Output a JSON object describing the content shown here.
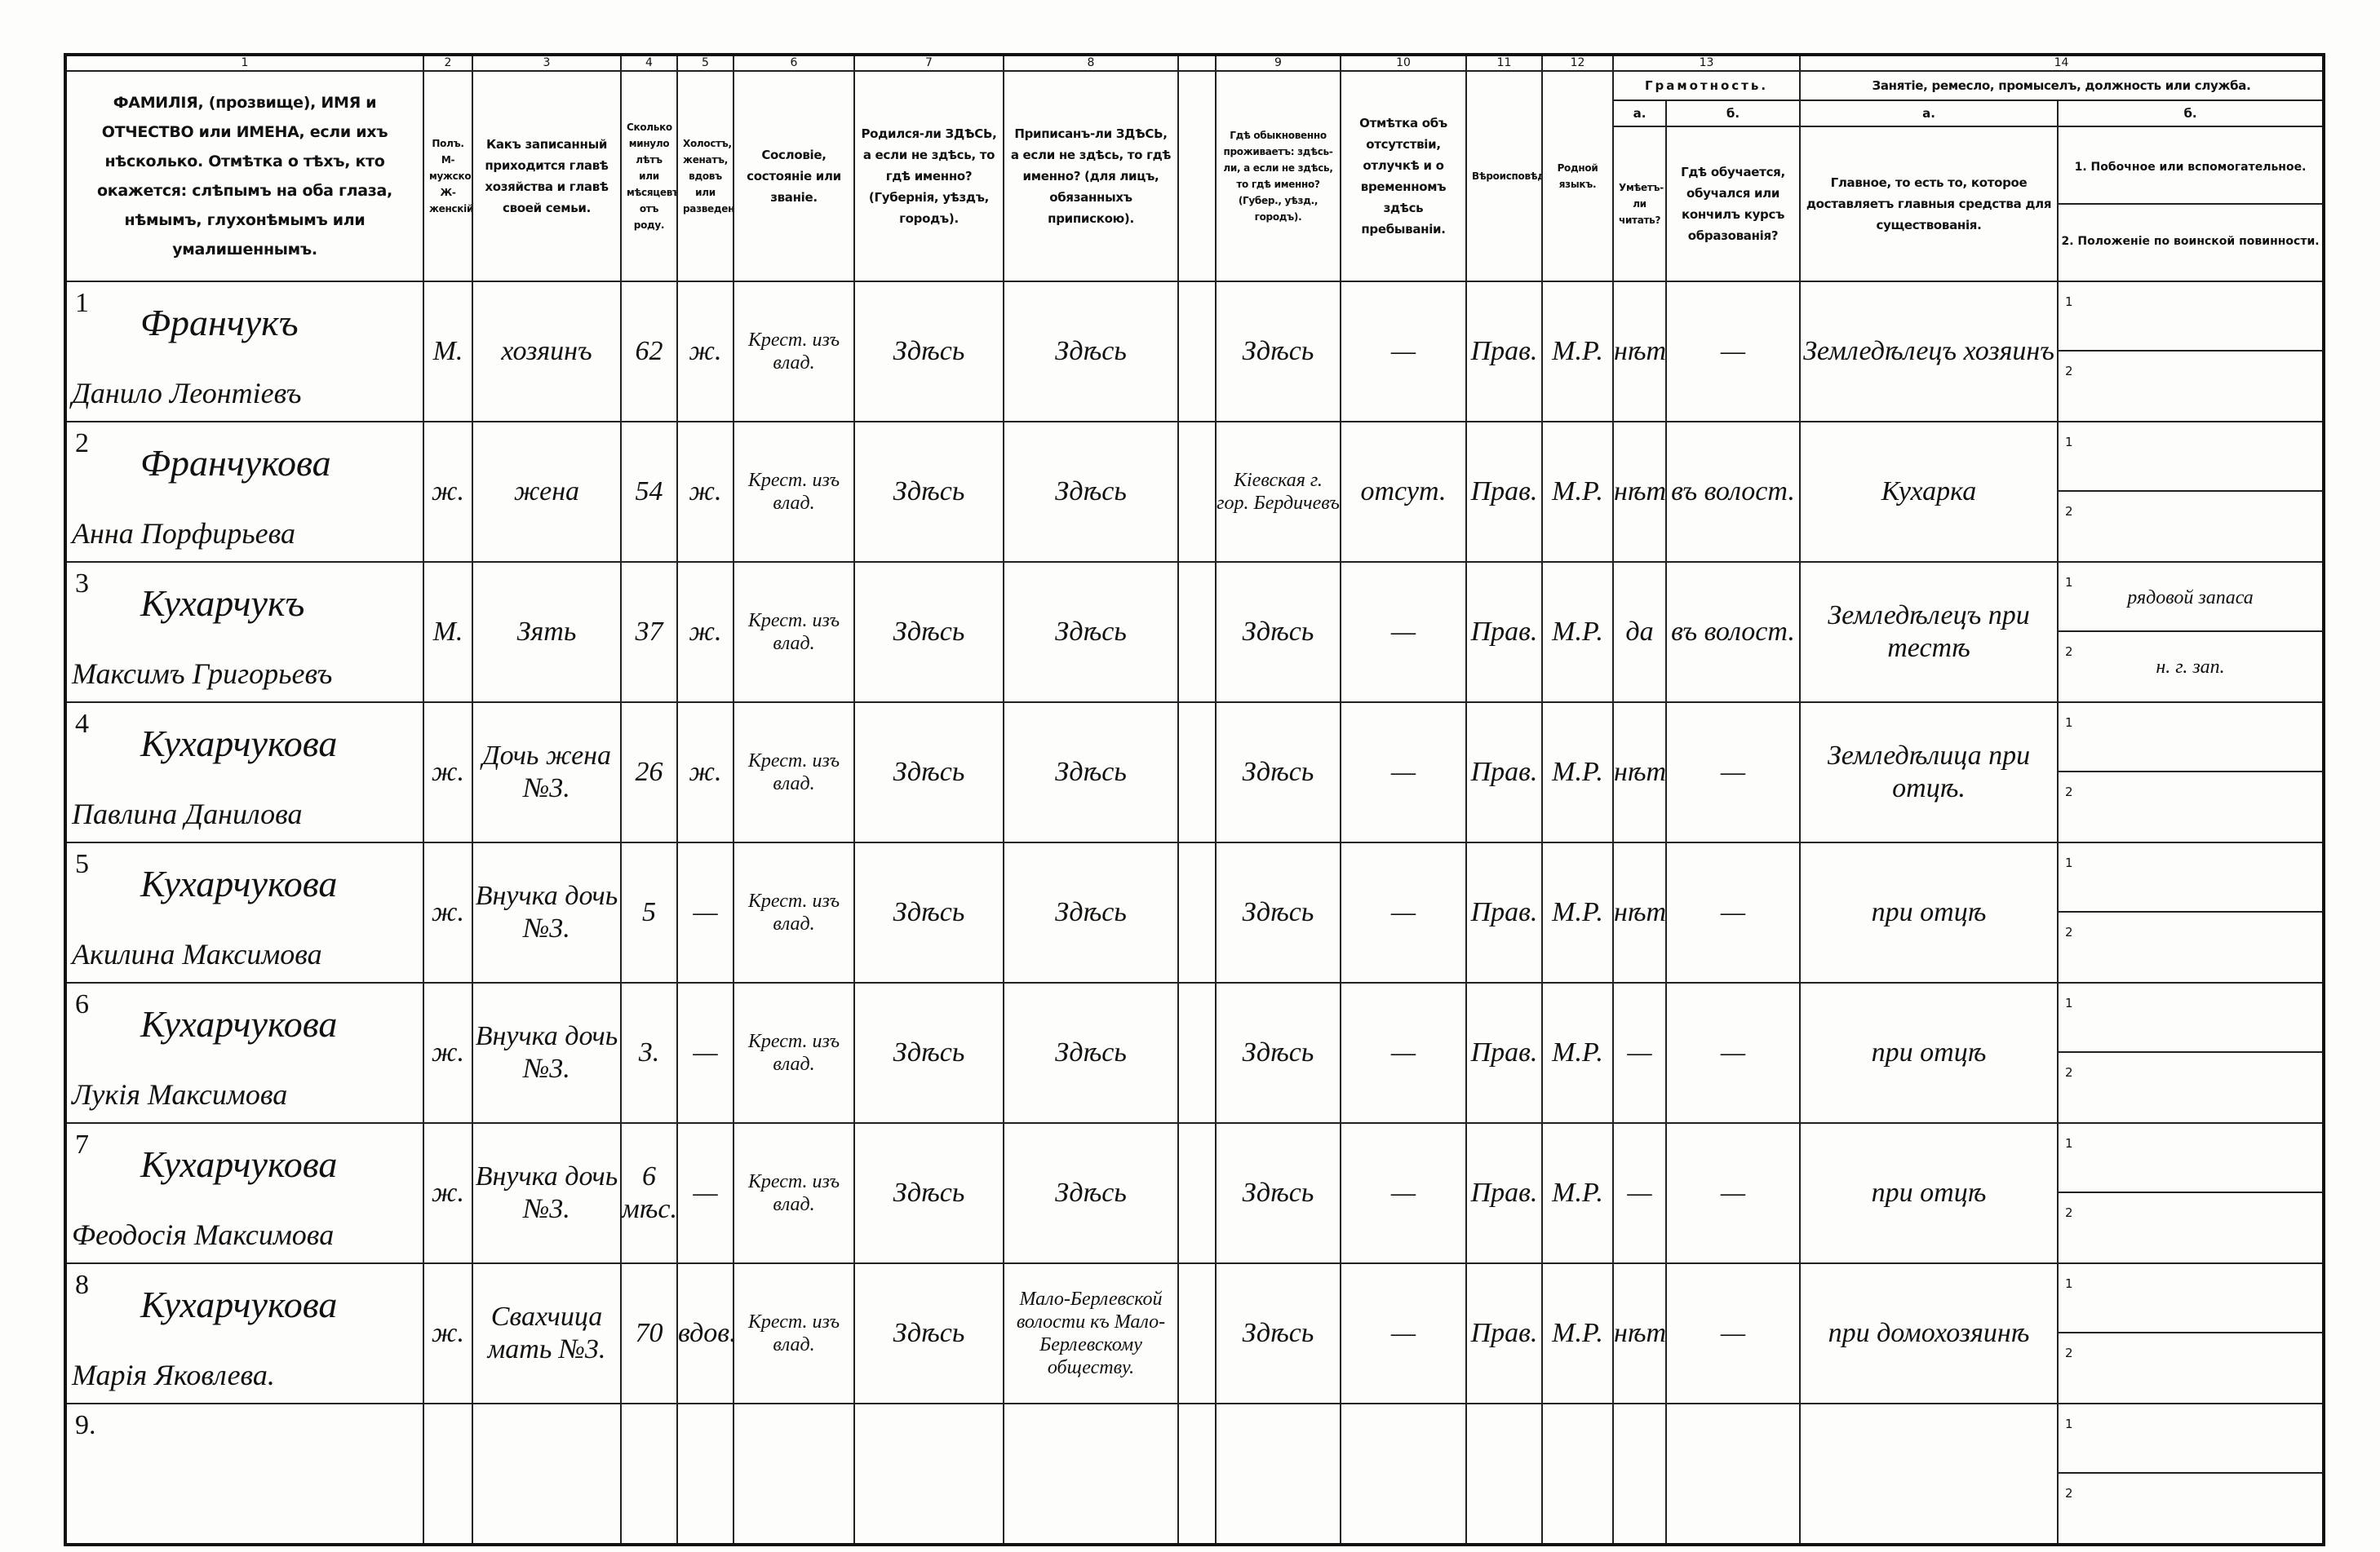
{
  "header": {
    "column_numbers": [
      "1",
      "2",
      "3",
      "4",
      "5",
      "6",
      "7",
      "8",
      "9",
      "10",
      "11",
      "12",
      "13",
      "14"
    ],
    "titles": [
      "ФАМИЛІЯ, (прозвище), ИМЯ и ОТЧЕСТВО или ИМЕНА, если ихъ нѣсколько. Отмѣтка о тѣхъ, кто окажется: слѣпымъ на оба глаза, нѣмымъ, глухонѣмымъ или умалишеннымъ.",
      "Полъ. М-мужской. Ж-женскій.",
      "Какъ записанный приходится главѣ хозяйства и главѣ своей семьи.",
      "Сколько минуло лѣтъ или мѣсяцевъ отъ роду.",
      "Холостъ, женатъ, вдовъ или разведенъ.",
      "Сословіе, состояніе или званіе.",
      "Родился-ли ЗДѢСЬ, а если не здѣсь, то гдѣ именно? (Губернія, уѣздъ, городъ).",
      "Приписанъ-ли ЗДѢСЬ, а если не здѣсь, то гдѣ именно? (для лицъ, обязанныхъ припискою).",
      "Гдѣ обыкновенно проживаетъ: здѣсь-ли, а если не здѣсь, то гдѣ именно? (Губер., уѣзд., городъ).",
      "Отмѣтка объ отсутствіи, отлучкѣ и о временномъ здѣсь пребываніи.",
      "Вѣроисповѣданіе.",
      "Родной языкъ."
    ],
    "literacy": {
      "title": "Грамотность.",
      "a_letter": "а.",
      "a_text": "Умѣетъ-ли читать?",
      "b_letter": "б.",
      "b_text": "Гдѣ обучается, обучался или кончилъ курсъ образованія?"
    },
    "occupation": {
      "title": "Занятіе, ремесло, промыселъ, должность или служба.",
      "a_letter": "а.",
      "a_text": "Главное, то есть то, которое доставляетъ главныя средства для существованія.",
      "b_letter": "б.",
      "b_text_1": "1. Побочное или вспомогательное.",
      "b_text_2": "2. Положеніе по воинской повинности."
    }
  },
  "rows": [
    {
      "number": "1",
      "surname": "Франчукъ",
      "name": "Данило Леонтіевъ",
      "sex": "М.",
      "relation": "хозяинъ",
      "age": "62",
      "marital": "ж.",
      "estate": "Крест. изъ влад.",
      "born": "Здѣсь",
      "registered": "Здѣсь",
      "residence": "Здѣсь",
      "absence": "—",
      "religion": "Прав.",
      "language": "М.Р.",
      "literate": "нѣтъ",
      "education": "—",
      "occupation": "Земледѣлецъ хозяинъ",
      "sub_labels": [
        "1",
        "2"
      ]
    },
    {
      "number": "2",
      "surname": "Франчукова",
      "name": "Анна Порфирьева",
      "sex": "ж.",
      "relation": "жена",
      "age": "54",
      "marital": "ж.",
      "estate": "Крест. изъ влад.",
      "born": "Здѣсь",
      "registered": "Здѣсь",
      "residence": "Кіевская г. гор. Бердичевъ",
      "absence": "отсут.",
      "religion": "Прав.",
      "language": "М.Р.",
      "literate": "нѣтъ",
      "education": "въ волост.",
      "occupation": "Кухарка",
      "sub_labels": [
        "1",
        "2"
      ]
    },
    {
      "number": "3",
      "surname": "Кухарчукъ",
      "name": "Максимъ Григорьевъ",
      "sex": "М.",
      "relation": "Зять",
      "age": "37",
      "marital": "ж.",
      "estate": "Крест. изъ влад.",
      "born": "Здѣсь",
      "registered": "Здѣсь",
      "residence": "Здѣсь",
      "absence": "—",
      "religion": "Прав.",
      "language": "М.Р.",
      "literate": "да",
      "education": "въ волост.",
      "occupation": "Земледѣлецъ при тестѣ",
      "sub_labels": [
        "1",
        "2"
      ],
      "secondary": "рядовой запаса",
      "military": "н. г. зап."
    },
    {
      "number": "4",
      "surname": "Кухарчукова",
      "name": "Павлина Данилова",
      "sex": "ж.",
      "relation": "Дочь жена №3.",
      "age": "26",
      "marital": "ж.",
      "estate": "Крест. изъ влад.",
      "born": "Здѣсь",
      "registered": "Здѣсь",
      "residence": "Здѣсь",
      "absence": "—",
      "religion": "Прав.",
      "language": "М.Р.",
      "literate": "нѣтъ",
      "education": "—",
      "occupation": "Земледѣлица при отцѣ.",
      "sub_labels": [
        "1",
        "2"
      ]
    },
    {
      "number": "5",
      "surname": "Кухарчукова",
      "name": "Акилина Максимова",
      "sex": "ж.",
      "relation": "Внучка дочь №3.",
      "age": "5",
      "marital": "—",
      "estate": "Крест. изъ влад.",
      "born": "Здѣсь",
      "registered": "Здѣсь",
      "residence": "Здѣсь",
      "absence": "—",
      "religion": "Прав.",
      "language": "М.Р.",
      "literate": "нѣтъ",
      "education": "—",
      "occupation": "при отцѣ",
      "sub_labels": [
        "1",
        "2"
      ]
    },
    {
      "number": "6",
      "surname": "Кухарчукова",
      "name": "Лукія Максимова",
      "sex": "ж.",
      "relation": "Внучка дочь №3.",
      "age": "3.",
      "marital": "—",
      "estate": "Крест. изъ влад.",
      "born": "Здѣсь",
      "registered": "Здѣсь",
      "residence": "Здѣсь",
      "absence": "—",
      "religion": "Прав.",
      "language": "М.Р.",
      "literate": "—",
      "education": "—",
      "occupation": "при отцѣ",
      "sub_labels": [
        "1",
        "2"
      ]
    },
    {
      "number": "7",
      "surname": "Кухарчукова",
      "name": "Феодосія Максимова",
      "sex": "ж.",
      "relation": "Внучка дочь №3.",
      "age": "6 мѣс.",
      "marital": "—",
      "estate": "Крест. изъ влад.",
      "born": "Здѣсь",
      "registered": "Здѣсь",
      "residence": "Здѣсь",
      "absence": "—",
      "religion": "Прав.",
      "language": "М.Р.",
      "literate": "—",
      "education": "—",
      "occupation": "при отцѣ",
      "sub_labels": [
        "1",
        "2"
      ]
    },
    {
      "number": "8",
      "surname": "Кухарчукова",
      "name": "Марія Яковлева.",
      "sex": "ж.",
      "relation": "Свахчица мать №3.",
      "age": "70",
      "marital": "вдов.",
      "estate": "Крест. изъ влад.",
      "born": "Здѣсь",
      "registered": "Мало-Берлевской волости къ Мало-Берлевскому обществу.",
      "residence": "Здѣсь",
      "absence": "—",
      "religion": "Прав.",
      "language": "М.Р.",
      "literate": "нѣтъ",
      "education": "—",
      "occupation": "при домохозяинѣ",
      "sub_labels": [
        "1",
        "2"
      ]
    },
    {
      "number": "9.",
      "sub_labels": [
        "1",
        "2"
      ]
    }
  ]
}
